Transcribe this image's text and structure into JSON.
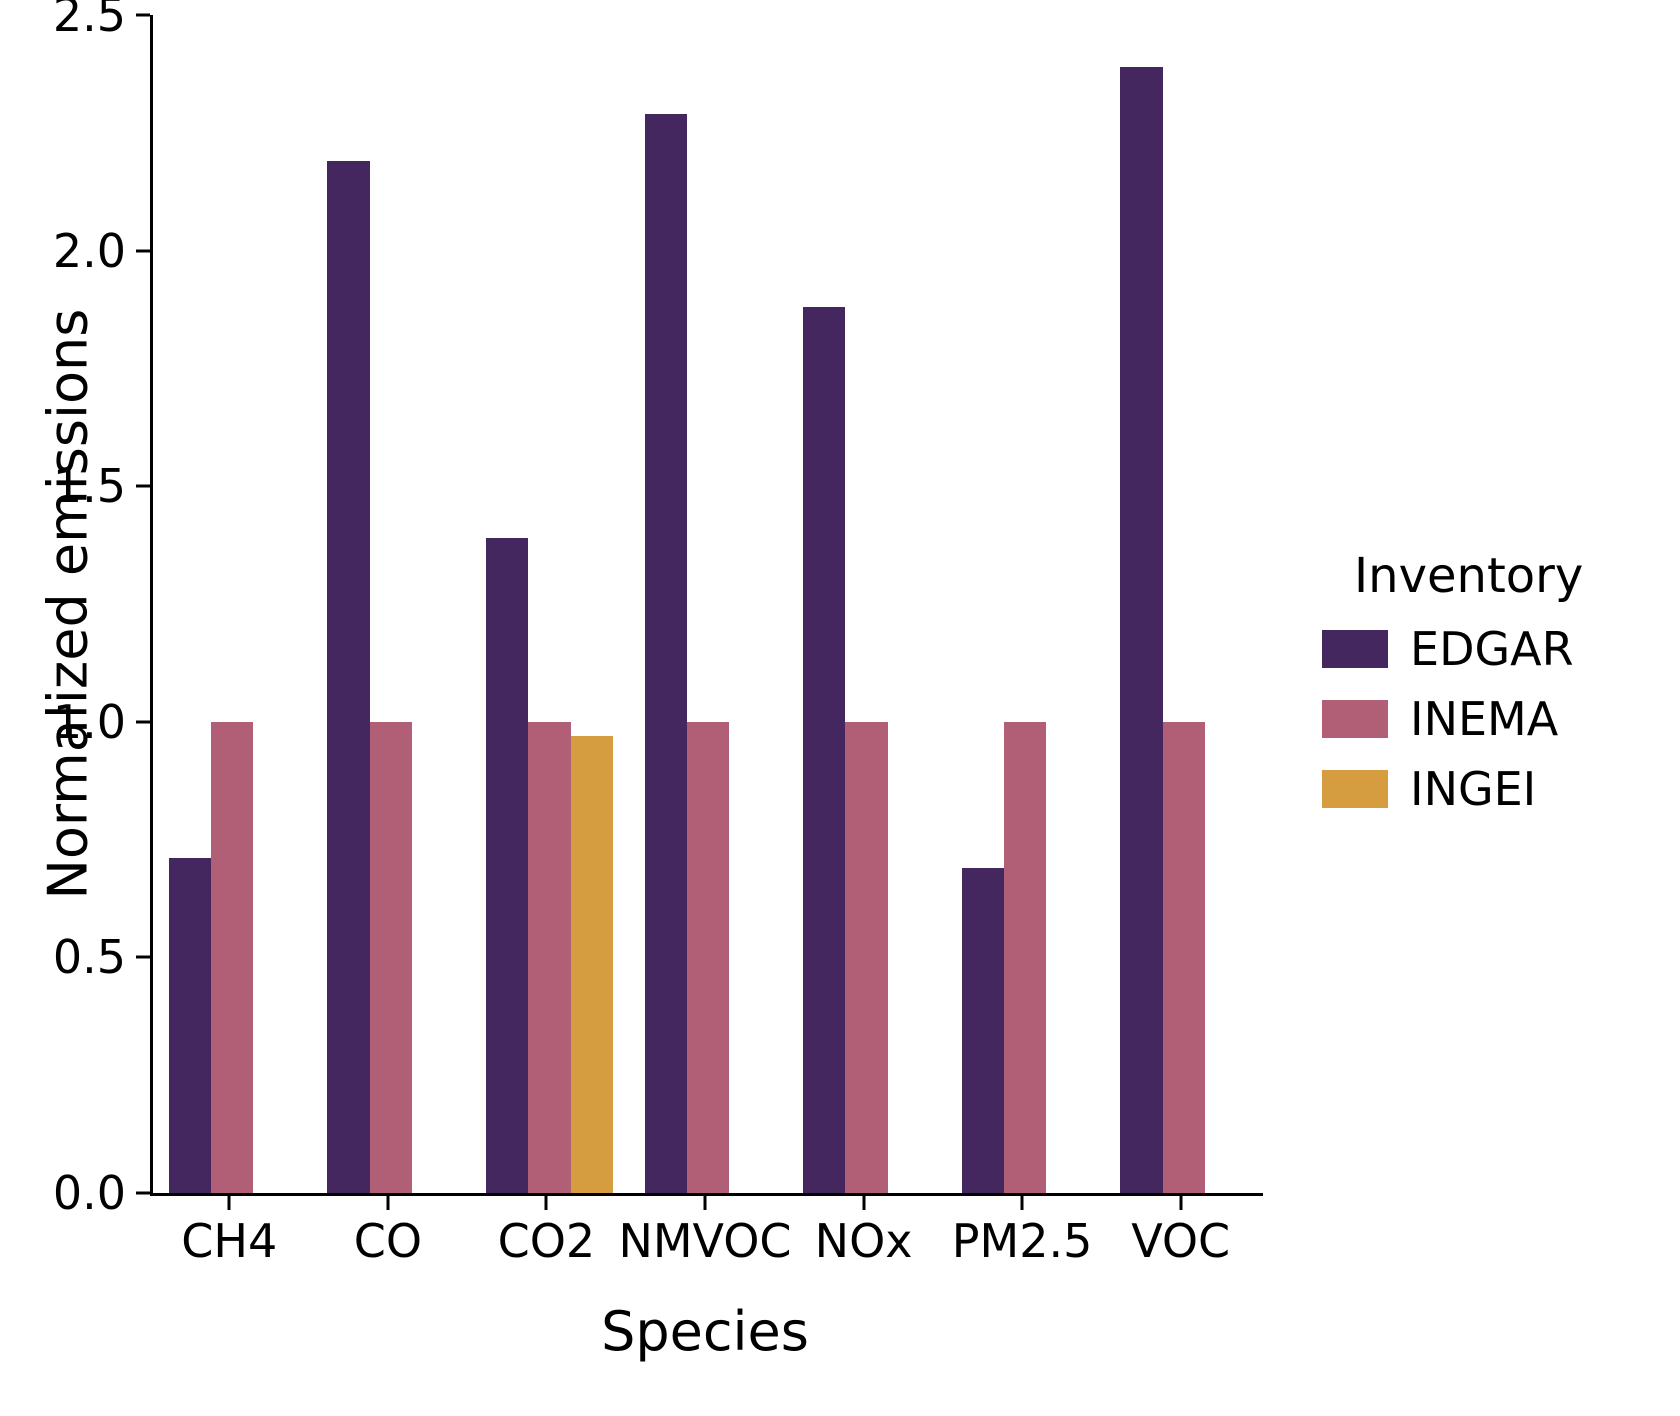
{
  "chart_data": {
    "type": "bar",
    "title": "",
    "xlabel": "Species",
    "ylabel": "Normalized emissions",
    "categories": [
      "CH4",
      "CO",
      "CO2",
      "NMVOC",
      "NOx",
      "PM2.5",
      "VOC"
    ],
    "series": [
      {
        "name": "EDGAR",
        "color": "#44275e",
        "values": [
          0.71,
          2.19,
          1.39,
          2.29,
          1.88,
          0.69,
          2.39
        ]
      },
      {
        "name": "INEMA",
        "color": "#b05f77",
        "values": [
          1.0,
          1.0,
          1.0,
          1.0,
          1.0,
          1.0,
          1.0
        ]
      },
      {
        "name": "INGEI",
        "color": "#d59c40",
        "values": [
          null,
          null,
          0.97,
          null,
          null,
          null,
          null
        ]
      }
    ],
    "ylim": [
      0,
      2.5
    ],
    "yticks": [
      0.0,
      0.5,
      1.0,
      1.5,
      2.0,
      2.5
    ],
    "ytick_format_decimals": 1,
    "legend_title": "Inventory",
    "legend_position": "right",
    "grid": false,
    "background": "#ffffff"
  }
}
